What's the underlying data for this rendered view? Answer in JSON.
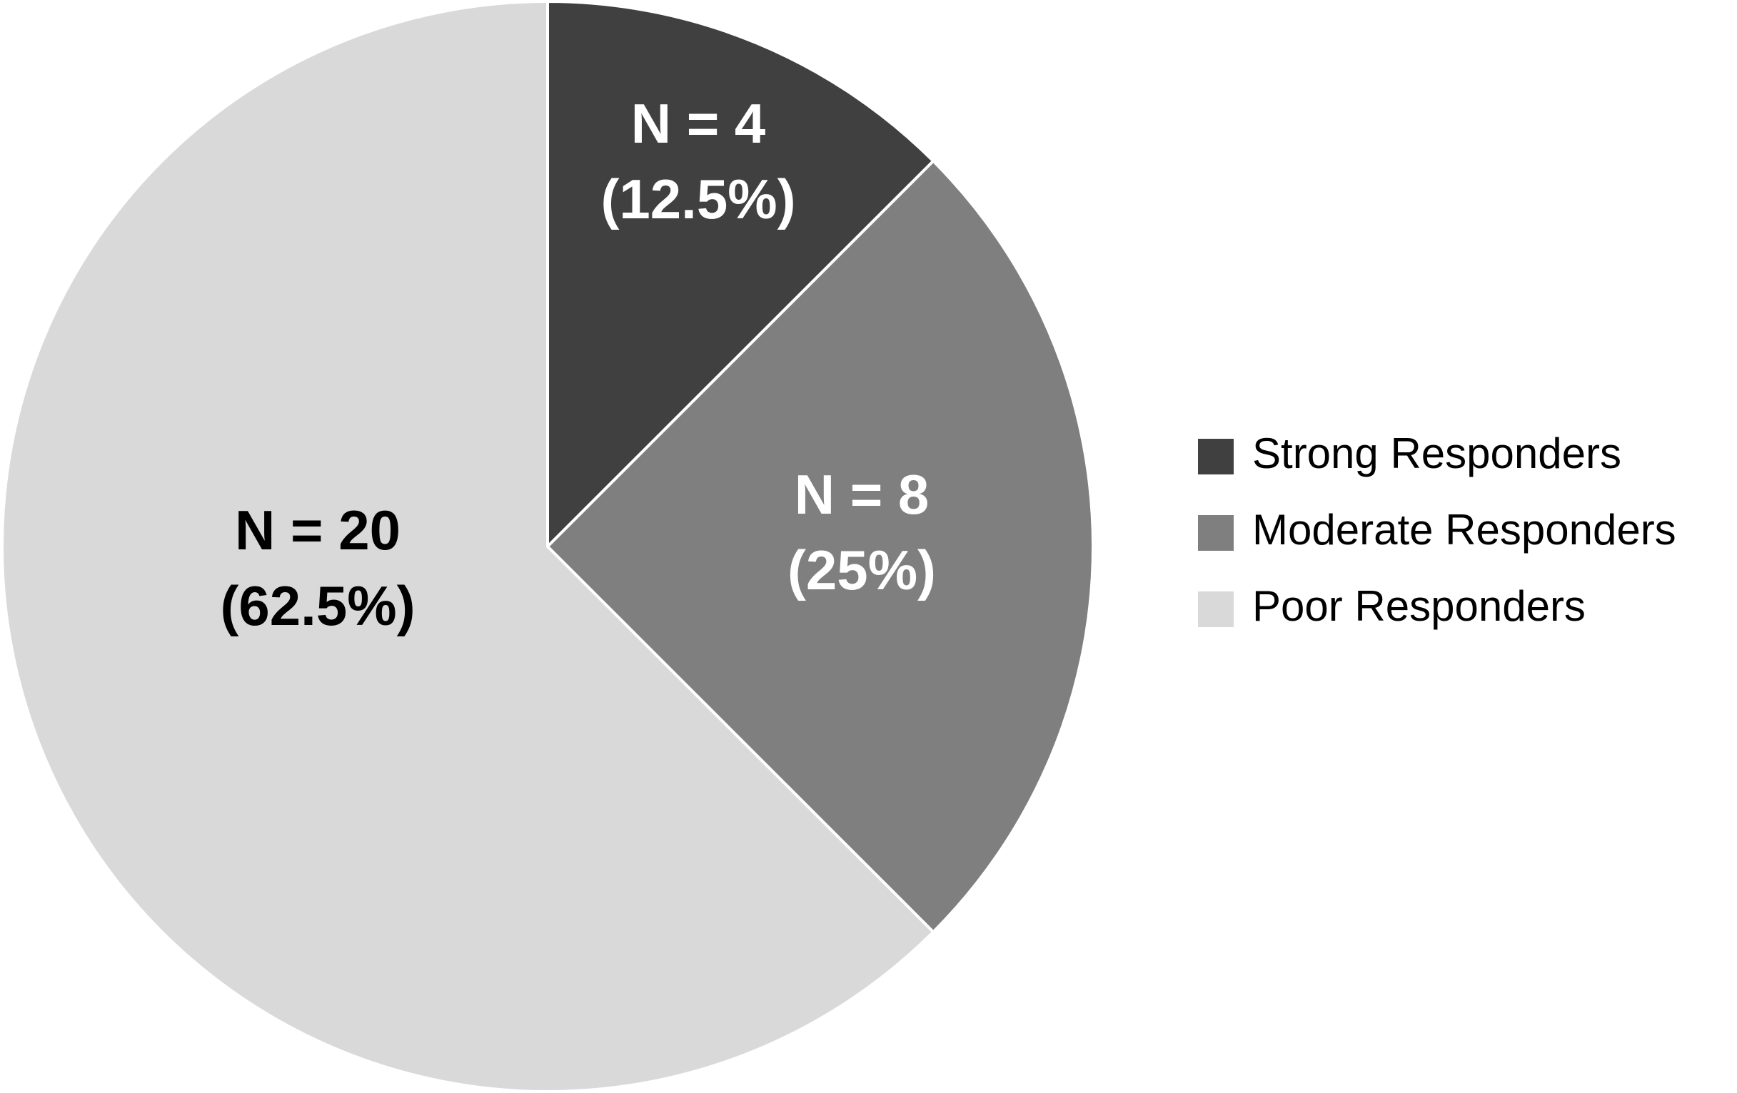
{
  "chart_data": {
    "type": "pie",
    "slices": [
      {
        "name": "Strong Responders",
        "value": 4,
        "percent": 12.5,
        "color": "#404040",
        "label_color": "#ffffff",
        "label_line1": "N = 4",
        "label_line2": "(12.5%)"
      },
      {
        "name": "Moderate Responders",
        "value": 8,
        "percent": 25,
        "color": "#7f7f7f",
        "label_color": "#ffffff",
        "label_line1": "N = 8",
        "label_line2": "(25%)"
      },
      {
        "name": "Poor Responders",
        "value": 20,
        "percent": 62.5,
        "color": "#d9d9d9",
        "label_color": "#000000",
        "label_line1": "N = 20",
        "label_line2": "(62.5%)"
      }
    ],
    "start_position": "12 o'clock",
    "direction": "clockwise",
    "legend_position": "right"
  }
}
